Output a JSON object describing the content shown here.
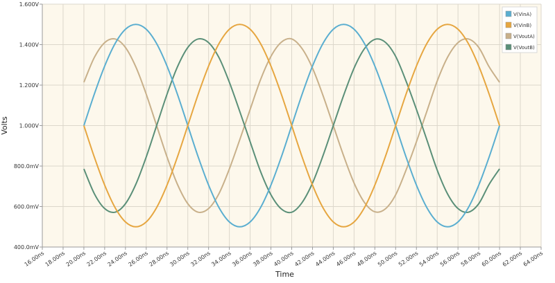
{
  "chart_data": {
    "type": "line",
    "title": "",
    "xlabel": "Time",
    "ylabel": "Volts",
    "xlim": [
      16,
      64
    ],
    "ylim": [
      0.4,
      1.6
    ],
    "grid": true,
    "legend_position": "top-right",
    "plot_background": "#fdf8ec",
    "x_ticks": [
      16,
      18,
      20,
      22,
      24,
      26,
      28,
      30,
      32,
      34,
      36,
      38,
      40,
      42,
      44,
      46,
      48,
      50,
      52,
      54,
      56,
      58,
      60,
      62,
      64
    ],
    "x_tick_labels": [
      "16.00ns",
      "18.00ns",
      "20.00ns",
      "22.00ns",
      "24.00ns",
      "26.00ns",
      "28.00ns",
      "30.00ns",
      "32.00ns",
      "34.00ns",
      "36.00ns",
      "38.00ns",
      "40.00ns",
      "42.00ns",
      "44.00ns",
      "46.00ns",
      "48.00ns",
      "50.00ns",
      "52.00ns",
      "54.00ns",
      "56.00ns",
      "58.00ns",
      "60.00ns",
      "62.00ns",
      "64.00ns"
    ],
    "y_ticks": [
      0.4,
      0.6,
      0.8,
      1.0,
      1.2,
      1.4,
      1.6
    ],
    "y_tick_labels": [
      "400.0mV",
      "600.0mV",
      "800.0mV",
      "1.000V",
      "1.200V",
      "1.400V",
      "1.600V"
    ],
    "x": [
      20,
      21,
      22,
      23,
      24,
      25,
      26,
      27,
      28,
      29,
      30,
      31,
      32,
      33,
      34,
      35,
      36,
      37,
      38,
      39,
      40,
      41,
      42,
      43,
      44,
      45,
      46,
      47,
      48,
      49,
      50,
      51,
      52,
      53,
      54,
      55,
      56,
      57,
      58,
      59,
      60
    ],
    "series": [
      {
        "name": "V(VinA)",
        "color": "#5aaed0",
        "values": [
          1.0,
          1.155,
          1.294,
          1.405,
          1.476,
          1.5,
          1.476,
          1.405,
          1.294,
          1.155,
          1.0,
          0.845,
          0.706,
          0.595,
          0.524,
          0.5,
          0.524,
          0.595,
          0.706,
          0.845,
          1.0,
          1.155,
          1.294,
          1.405,
          1.476,
          1.5,
          1.476,
          1.405,
          1.294,
          1.155,
          1.0,
          0.845,
          0.706,
          0.595,
          0.524,
          0.5,
          0.524,
          0.595,
          0.706,
          0.845,
          1.0
        ]
      },
      {
        "name": "V(VinB)",
        "color": "#e6a640",
        "values": [
          1.0,
          0.845,
          0.706,
          0.595,
          0.524,
          0.5,
          0.524,
          0.595,
          0.706,
          0.845,
          1.0,
          1.155,
          1.294,
          1.405,
          1.476,
          1.5,
          1.476,
          1.405,
          1.294,
          1.155,
          1.0,
          0.845,
          0.706,
          0.595,
          0.524,
          0.5,
          0.524,
          0.595,
          0.706,
          0.845,
          1.0,
          1.155,
          1.294,
          1.405,
          1.476,
          1.5,
          1.476,
          1.405,
          1.294,
          1.155,
          1.0
        ]
      },
      {
        "name": "V(VoutA)",
        "color": "#c8b08a",
        "values": [
          1.214,
          1.336,
          1.41,
          1.428,
          1.386,
          1.29,
          1.155,
          1.0,
          0.845,
          0.71,
          0.614,
          0.572,
          0.59,
          0.664,
          0.786,
          0.93,
          1.08,
          1.227,
          1.342,
          1.412,
          1.428,
          1.38,
          1.284,
          1.15,
          1.0,
          0.85,
          0.716,
          0.62,
          0.574,
          0.588,
          0.658,
          0.78,
          0.92,
          1.07,
          1.22,
          1.338,
          1.41,
          1.428,
          1.386,
          1.29,
          1.214
        ]
      },
      {
        "name": "V(VoutB)",
        "color": "#5a8f78",
        "values": [
          0.786,
          0.664,
          0.59,
          0.572,
          0.614,
          0.71,
          0.845,
          1.0,
          1.155,
          1.29,
          1.386,
          1.428,
          1.41,
          1.336,
          1.214,
          1.07,
          0.92,
          0.773,
          0.658,
          0.588,
          0.572,
          0.62,
          0.716,
          0.85,
          1.0,
          1.15,
          1.284,
          1.38,
          1.426,
          1.412,
          1.342,
          1.22,
          1.08,
          0.93,
          0.78,
          0.662,
          0.59,
          0.572,
          0.614,
          0.71,
          0.786
        ]
      }
    ]
  }
}
